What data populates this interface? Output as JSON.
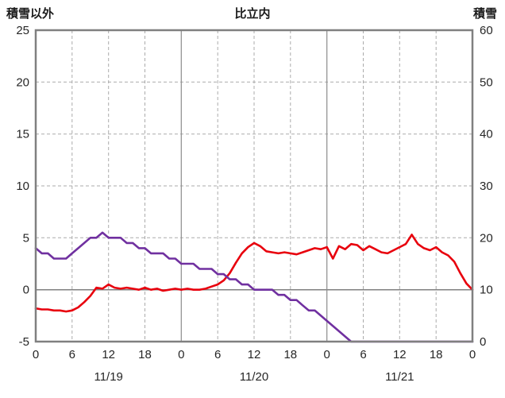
{
  "header": {
    "left_axis_title": "積雪以外",
    "title": "比立内",
    "right_axis_title": "積雪"
  },
  "chart_data": {
    "type": "line",
    "title": "比立内",
    "left_axis": {
      "label": "積雪以外",
      "min": -5,
      "max": 25,
      "ticks": [
        -5,
        0,
        5,
        10,
        15,
        20,
        25
      ]
    },
    "right_axis": {
      "label": "積雪",
      "min": 0,
      "max": 60,
      "ticks": [
        0,
        10,
        20,
        30,
        40,
        50,
        60
      ]
    },
    "x_axis": {
      "min_hour": 0,
      "max_hour": 72,
      "step_hours": 1,
      "hour_ticks": [
        0,
        6,
        12,
        18,
        24,
        30,
        36,
        42,
        48,
        54,
        60,
        66,
        72
      ],
      "hour_tick_labels": [
        "0",
        "6",
        "12",
        "18",
        "0",
        "6",
        "12",
        "18",
        "0",
        "6",
        "12",
        "18",
        "0"
      ],
      "day_boundaries": [
        24,
        48
      ],
      "day_labels": [
        "11/19",
        "11/20",
        "11/21"
      ]
    },
    "grid": {
      "dashed_color": "#ababab",
      "solid_color": "#8c8c8c",
      "border_color": "#808080",
      "zero_line_color": "#808080"
    },
    "series": [
      {
        "name": "積雪以外",
        "axis": "left",
        "color": "#e8000d",
        "values": [
          -1.8,
          -1.9,
          -1.9,
          -2.0,
          -2.0,
          -2.1,
          -2.0,
          -1.7,
          -1.2,
          -0.6,
          0.2,
          0.1,
          0.5,
          0.2,
          0.1,
          0.2,
          0.1,
          0.0,
          0.2,
          0.0,
          0.1,
          -0.1,
          0.0,
          0.1,
          0.0,
          0.1,
          0.0,
          0.0,
          0.1,
          0.3,
          0.5,
          0.9,
          1.6,
          2.6,
          3.5,
          4.1,
          4.5,
          4.2,
          3.7,
          3.6,
          3.5,
          3.6,
          3.5,
          3.4,
          3.6,
          3.8,
          4.0,
          3.9,
          4.1,
          3.0,
          4.2,
          3.9,
          4.4,
          4.3,
          3.8,
          4.2,
          3.9,
          3.6,
          3.5,
          3.8,
          4.1,
          4.4,
          5.3,
          4.4,
          4.0,
          3.8,
          4.1,
          3.6,
          3.3,
          2.7,
          1.6,
          0.6,
          0.0
        ]
      },
      {
        "name": "積雪",
        "axis": "right",
        "color": "#7030a0",
        "values": [
          18,
          17,
          17,
          16,
          16,
          16,
          17,
          18,
          19,
          20,
          20,
          21,
          20,
          20,
          20,
          19,
          19,
          18,
          18,
          17,
          17,
          17,
          16,
          16,
          15,
          15,
          15,
          14,
          14,
          14,
          13,
          13,
          12,
          12,
          11,
          11,
          10,
          10,
          10,
          10,
          9,
          9,
          8,
          8,
          7,
          6,
          6,
          5,
          4,
          3,
          2,
          1,
          0,
          0,
          0,
          0,
          0,
          0,
          0,
          0,
          0,
          0,
          0,
          0,
          0,
          0,
          0,
          0,
          0,
          0,
          0,
          0,
          0
        ]
      }
    ]
  }
}
